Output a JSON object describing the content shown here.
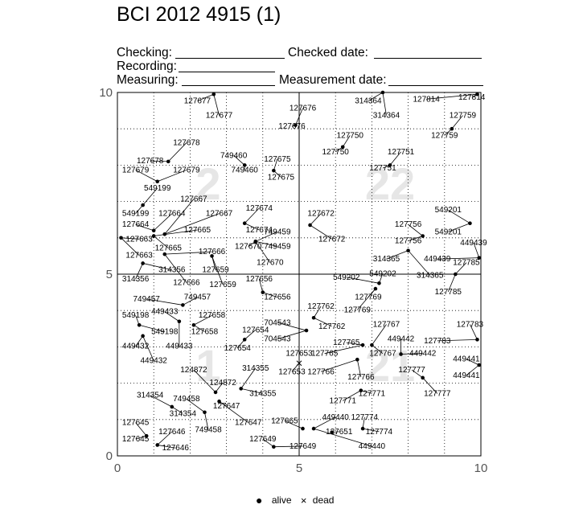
{
  "title": "BCI 2012 4915 (1)",
  "form": {
    "checking": "Checking:",
    "checked_date": "Checked date:",
    "recording": "Recording:",
    "measuring": "Measuring:",
    "measurement_date": "Measurement date:"
  },
  "legend": {
    "alive": "alive",
    "dead": "dead"
  },
  "chart_data": {
    "type": "scatter",
    "title": "BCI 2012 4915 (1)",
    "xlim": [
      0,
      10
    ],
    "ylim": [
      0,
      10
    ],
    "x_ticks": [
      "0",
      "5",
      "10"
    ],
    "y_ticks": [
      "0",
      "5",
      "10"
    ],
    "grid": "dotted",
    "quadrant_labels": [
      {
        "text": "2",
        "x": 2.5,
        "y": 7.5
      },
      {
        "text": "22",
        "x": 7.5,
        "y": 7.5
      },
      {
        "text": "1",
        "x": 2.5,
        "y": 2.5
      },
      {
        "text": "21",
        "x": 7.5,
        "y": 2.5
      }
    ],
    "points": [
      {
        "id": "127677",
        "x": 2.65,
        "y": 9.95,
        "lx": 2.2,
        "ly": 9.7,
        "l2x": 2.8,
        "l2y": 9.3,
        "status": "alive"
      },
      {
        "id": "127676",
        "x": 4.9,
        "y": 9.1,
        "lx": 5.1,
        "ly": 9.5,
        "l2x": 4.8,
        "l2y": 9.0,
        "status": "alive"
      },
      {
        "id": "314364",
        "x": 7.3,
        "y": 10.0,
        "lx": 6.9,
        "ly": 9.7,
        "l2x": 7.4,
        "l2y": 9.3,
        "status": "alive"
      },
      {
        "id": "127814",
        "x": 9.9,
        "y": 9.95,
        "lx": 8.5,
        "ly": 9.75,
        "l2x": 9.75,
        "l2y": 9.8,
        "status": "alive"
      },
      {
        "id": "127759",
        "x": 9.2,
        "y": 9.0,
        "lx": 9.5,
        "ly": 9.3,
        "l2x": 9.0,
        "l2y": 8.75,
        "status": "alive"
      },
      {
        "id": "127750",
        "x": 6.2,
        "y": 8.5,
        "lx": 6.4,
        "ly": 8.75,
        "l2x": 6.0,
        "l2y": 8.3,
        "status": "alive"
      },
      {
        "id": "127751",
        "x": 7.5,
        "y": 8.0,
        "lx": 7.8,
        "ly": 8.3,
        "l2x": 7.3,
        "l2y": 7.85,
        "status": "alive"
      },
      {
        "id": "127678",
        "x": 1.4,
        "y": 8.1,
        "lx": 1.9,
        "ly": 8.55,
        "l2x": 0.9,
        "l2y": 8.05,
        "status": "alive"
      },
      {
        "id": "749460",
        "x": 3.5,
        "y": 8.0,
        "lx": 3.2,
        "ly": 8.2,
        "l2x": 3.5,
        "l2y": 7.8,
        "status": "alive"
      },
      {
        "id": "127675",
        "x": 4.3,
        "y": 7.85,
        "lx": 4.4,
        "ly": 8.1,
        "l2x": 4.5,
        "l2y": 7.6,
        "status": "alive"
      },
      {
        "id": "127679",
        "x": 1.1,
        "y": 7.55,
        "lx": 0.5,
        "ly": 7.8,
        "l2x": 1.9,
        "l2y": 7.8,
        "status": "alive"
      },
      {
        "id": "549199",
        "x": 0.7,
        "y": 6.9,
        "lx": 1.1,
        "ly": 7.3,
        "l2x": 0.5,
        "l2y": 6.6,
        "status": "alive"
      },
      {
        "id": "127667",
        "x": 1.3,
        "y": 6.1,
        "lx": 2.1,
        "ly": 7.0,
        "l2x": 2.8,
        "l2y": 6.6,
        "status": "alive"
      },
      {
        "id": "127664",
        "x": 1.0,
        "y": 6.2,
        "lx": 0.5,
        "ly": 6.3,
        "l2x": 1.5,
        "l2y": 6.6,
        "status": "alive"
      },
      {
        "id": "127665",
        "x": 1.0,
        "y": 6.05,
        "lx": 2.2,
        "ly": 6.15,
        "l2x": 1.4,
        "l2y": 5.65,
        "status": "alive"
      },
      {
        "id": "127674",
        "x": 3.5,
        "y": 6.4,
        "lx": 3.9,
        "ly": 6.75,
        "l2x": 3.9,
        "l2y": 6.15,
        "status": "alive"
      },
      {
        "id": "749459",
        "x": 3.8,
        "y": 5.9,
        "lx": 4.4,
        "ly": 6.1,
        "l2x": 4.4,
        "l2y": 5.7,
        "status": "alive"
      },
      {
        "id": "127670",
        "x": 3.8,
        "y": 5.9,
        "lx": 3.6,
        "ly": 5.7,
        "l2x": 4.2,
        "l2y": 5.25,
        "status": "alive"
      },
      {
        "id": "127672",
        "x": 5.3,
        "y": 6.35,
        "lx": 5.6,
        "ly": 6.6,
        "l2x": 5.9,
        "l2y": 5.9,
        "status": "alive"
      },
      {
        "id": "127663",
        "x": 0.1,
        "y": 6.0,
        "lx": 0.6,
        "ly": 5.9,
        "l2x": 0.6,
        "l2y": 5.45,
        "status": "alive"
      },
      {
        "id": "127666",
        "x": 1.3,
        "y": 5.55,
        "lx": 2.6,
        "ly": 5.55,
        "l2x": 1.9,
        "l2y": 4.7,
        "status": "alive"
      },
      {
        "id": "314356",
        "x": 0.7,
        "y": 5.3,
        "lx": 1.5,
        "ly": 5.05,
        "l2x": 0.5,
        "l2y": 4.8,
        "status": "alive"
      },
      {
        "id": "127659",
        "x": 2.6,
        "y": 5.5,
        "lx": 2.7,
        "ly": 5.05,
        "l2x": 2.9,
        "l2y": 4.65,
        "status": "alive"
      },
      {
        "id": "127656",
        "x": 4.0,
        "y": 4.5,
        "lx": 3.9,
        "ly": 4.8,
        "l2x": 4.4,
        "l2y": 4.3,
        "status": "alive"
      },
      {
        "id": "549201",
        "x": 9.7,
        "y": 6.4,
        "lx": 9.1,
        "ly": 6.7,
        "l2x": 9.1,
        "l2y": 6.1,
        "status": "alive"
      },
      {
        "id": "127756",
        "x": 8.4,
        "y": 6.05,
        "lx": 8.0,
        "ly": 6.3,
        "l2x": 8.0,
        "l2y": 5.85,
        "status": "alive"
      },
      {
        "id": "449439",
        "x": 9.95,
        "y": 5.45,
        "lx": 9.8,
        "ly": 5.8,
        "l2x": 8.8,
        "l2y": 5.35,
        "status": "alive"
      },
      {
        "id": "314365",
        "x": 8.0,
        "y": 5.65,
        "lx": 7.4,
        "ly": 5.35,
        "l2x": 8.6,
        "l2y": 4.9,
        "status": "alive"
      },
      {
        "id": "127785",
        "x": 9.3,
        "y": 5.0,
        "lx": 9.6,
        "ly": 5.25,
        "l2x": 9.1,
        "l2y": 4.45,
        "status": "alive"
      },
      {
        "id": "549202",
        "x": 7.2,
        "y": 4.75,
        "lx": 6.3,
        "ly": 4.85,
        "l2x": 7.3,
        "l2y": 4.95,
        "status": "alive"
      },
      {
        "id": "127769",
        "x": 7.1,
        "y": 4.6,
        "lx": 6.9,
        "ly": 4.3,
        "l2x": 6.6,
        "l2y": 3.95,
        "status": "alive"
      },
      {
        "id": "749457",
        "x": 1.8,
        "y": 4.15,
        "lx": 0.8,
        "ly": 4.25,
        "l2x": 2.2,
        "l2y": 4.3,
        "status": "alive"
      },
      {
        "id": "449433",
        "x": 1.7,
        "y": 3.7,
        "lx": 1.3,
        "ly": 3.9,
        "l2x": 1.7,
        "l2y": 2.95,
        "status": "alive"
      },
      {
        "id": "549198",
        "x": 0.6,
        "y": 3.6,
        "lx": 0.5,
        "ly": 3.8,
        "l2x": 1.3,
        "l2y": 3.35,
        "status": "alive"
      },
      {
        "id": "127658",
        "x": 2.1,
        "y": 3.6,
        "lx": 2.6,
        "ly": 3.8,
        "l2x": 2.4,
        "l2y": 3.35,
        "status": "alive"
      },
      {
        "id": "127654",
        "x": 3.5,
        "y": 3.2,
        "lx": 3.8,
        "ly": 3.4,
        "l2x": 3.3,
        "l2y": 2.9,
        "status": "alive"
      },
      {
        "id": "449432",
        "x": 0.7,
        "y": 3.3,
        "lx": 0.5,
        "ly": 2.95,
        "l2x": 1.0,
        "l2y": 2.55,
        "status": "alive"
      },
      {
        "id": "127762",
        "x": 5.4,
        "y": 3.8,
        "lx": 5.6,
        "ly": 4.05,
        "l2x": 5.9,
        "l2y": 3.5,
        "status": "alive"
      },
      {
        "id": "704543",
        "x": 5.2,
        "y": 3.45,
        "lx": 4.4,
        "ly": 3.6,
        "l2x": 4.4,
        "l2y": 3.15,
        "status": "alive"
      },
      {
        "id": "127767",
        "x": 7.0,
        "y": 3.05,
        "lx": 7.4,
        "ly": 3.55,
        "l2x": 7.3,
        "l2y": 2.75,
        "status": "alive"
      },
      {
        "id": "127765",
        "x": 6.75,
        "y": 3.05,
        "lx": 6.3,
        "ly": 3.05,
        "l2x": 5.7,
        "l2y": 2.75,
        "status": "alive"
      },
      {
        "id": "449442",
        "x": 7.8,
        "y": 2.8,
        "lx": 7.8,
        "ly": 3.15,
        "l2x": 8.4,
        "l2y": 2.75,
        "status": "alive"
      },
      {
        "id": "127783",
        "x": 9.9,
        "y": 3.2,
        "lx": 9.7,
        "ly": 3.55,
        "l2x": 8.8,
        "l2y": 3.1,
        "status": "alive"
      },
      {
        "id": "449441",
        "x": 9.95,
        "y": 2.5,
        "lx": 9.6,
        "ly": 2.6,
        "l2x": 9.6,
        "l2y": 2.15,
        "status": "alive"
      },
      {
        "id": "127653",
        "x": 5.0,
        "y": 2.55,
        "lx": 5.0,
        "ly": 2.75,
        "l2x": 4.8,
        "l2y": 2.25,
        "status": "dead"
      },
      {
        "id": "127766",
        "x": 6.6,
        "y": 2.65,
        "lx": 6.7,
        "ly": 2.1,
        "l2x": 5.6,
        "l2y": 2.25,
        "status": "alive"
      },
      {
        "id": "127777",
        "x": 8.4,
        "y": 2.15,
        "lx": 8.1,
        "ly": 2.3,
        "l2x": 8.8,
        "l2y": 1.65,
        "status": "alive"
      },
      {
        "id": "124872",
        "x": 2.7,
        "y": 1.75,
        "lx": 2.1,
        "ly": 2.3,
        "l2x": 2.9,
        "l2y": 1.95,
        "status": "alive"
      },
      {
        "id": "314355",
        "x": 3.4,
        "y": 1.85,
        "lx": 3.8,
        "ly": 2.35,
        "l2x": 4.0,
        "l2y": 1.65,
        "status": "alive"
      },
      {
        "id": "127647",
        "x": 2.8,
        "y": 1.5,
        "lx": 3.0,
        "ly": 1.3,
        "l2x": 3.6,
        "l2y": 0.85,
        "status": "alive"
      },
      {
        "id": "314354",
        "x": 1.5,
        "y": 1.35,
        "lx": 0.9,
        "ly": 1.6,
        "l2x": 1.8,
        "l2y": 1.1,
        "status": "alive"
      },
      {
        "id": "749458",
        "x": 2.4,
        "y": 1.2,
        "lx": 1.9,
        "ly": 1.5,
        "l2x": 2.5,
        "l2y": 0.65,
        "status": "alive"
      },
      {
        "id": "127771",
        "x": 6.7,
        "y": 1.8,
        "lx": 7.0,
        "ly": 1.65,
        "l2x": 6.2,
        "l2y": 1.45,
        "status": "alive"
      },
      {
        "id": "127645",
        "x": 0.8,
        "y": 0.55,
        "lx": 0.5,
        "ly": 0.85,
        "l2x": 0.5,
        "l2y": 0.4,
        "status": "alive"
      },
      {
        "id": "127646",
        "x": 1.1,
        "y": 0.3,
        "lx": 1.5,
        "ly": 0.6,
        "l2x": 1.6,
        "l2y": 0.15,
        "status": "alive"
      },
      {
        "id": "127665",
        "x": 5.1,
        "y": 0.75,
        "lx": 4.6,
        "ly": 0.9,
        "l2x": null,
        "l2y": null,
        "status": "alive"
      },
      {
        "id": "449440",
        "x": 5.4,
        "y": 0.75,
        "lx": 6.0,
        "ly": 1.0,
        "l2x": 7.0,
        "l2y": 0.2,
        "status": "alive"
      },
      {
        "id": "127651",
        "x": 5.9,
        "y": 0.65,
        "lx": 6.1,
        "ly": 0.6,
        "l2x": null,
        "l2y": null,
        "status": "alive"
      },
      {
        "id": "127774",
        "x": 6.75,
        "y": 0.75,
        "lx": 6.8,
        "ly": 1.0,
        "l2x": 7.2,
        "l2y": 0.6,
        "status": "alive"
      },
      {
        "id": "127649",
        "x": 4.3,
        "y": 0.25,
        "lx": 4.0,
        "ly": 0.4,
        "l2x": 5.1,
        "l2y": 0.2,
        "status": "alive"
      }
    ]
  }
}
